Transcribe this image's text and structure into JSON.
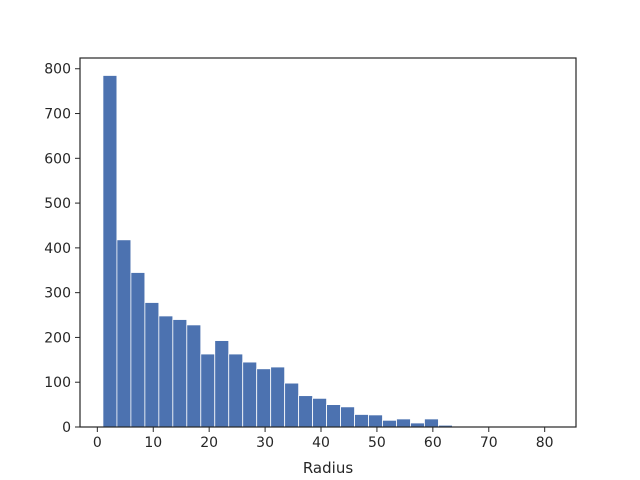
{
  "chart_data": {
    "type": "bar",
    "title": "",
    "xlabel": "Radius",
    "ylabel": "",
    "bin_width": 2.5,
    "bins": [
      {
        "x0": 1.0,
        "x1": 3.5,
        "value": 785
      },
      {
        "x0": 3.5,
        "x1": 6.0,
        "value": 418
      },
      {
        "x0": 6.0,
        "x1": 8.5,
        "value": 345
      },
      {
        "x0": 8.5,
        "x1": 11.0,
        "value": 278
      },
      {
        "x0": 11.0,
        "x1": 13.5,
        "value": 248
      },
      {
        "x0": 13.5,
        "x1": 16.0,
        "value": 240
      },
      {
        "x0": 16.0,
        "x1": 18.5,
        "value": 228
      },
      {
        "x0": 18.5,
        "x1": 21.0,
        "value": 163
      },
      {
        "x0": 21.0,
        "x1": 23.5,
        "value": 193
      },
      {
        "x0": 23.5,
        "x1": 26.0,
        "value": 163
      },
      {
        "x0": 26.0,
        "x1": 28.5,
        "value": 145
      },
      {
        "x0": 28.5,
        "x1": 31.0,
        "value": 130
      },
      {
        "x0": 31.0,
        "x1": 33.5,
        "value": 134
      },
      {
        "x0": 33.5,
        "x1": 36.0,
        "value": 98
      },
      {
        "x0": 36.0,
        "x1": 38.5,
        "value": 70
      },
      {
        "x0": 38.5,
        "x1": 41.0,
        "value": 64
      },
      {
        "x0": 41.0,
        "x1": 43.5,
        "value": 50
      },
      {
        "x0": 43.5,
        "x1": 46.0,
        "value": 45
      },
      {
        "x0": 46.0,
        "x1": 48.5,
        "value": 28
      },
      {
        "x0": 48.5,
        "x1": 51.0,
        "value": 27
      },
      {
        "x0": 51.0,
        "x1": 53.5,
        "value": 15
      },
      {
        "x0": 53.5,
        "x1": 56.0,
        "value": 18
      },
      {
        "x0": 56.0,
        "x1": 58.5,
        "value": 9
      },
      {
        "x0": 58.5,
        "x1": 61.0,
        "value": 18
      },
      {
        "x0": 61.0,
        "x1": 63.5,
        "value": 4
      },
      {
        "x0": 63.5,
        "x1": 66.0,
        "value": 1
      },
      {
        "x0": 66.0,
        "x1": 68.5,
        "value": 1
      },
      {
        "x0": 68.5,
        "x1": 71.0,
        "value": 1
      },
      {
        "x0": 71.0,
        "x1": 73.5,
        "value": 1
      },
      {
        "x0": 73.5,
        "x1": 76.0,
        "value": 0
      },
      {
        "x0": 76.0,
        "x1": 78.5,
        "value": 1
      },
      {
        "x0": 78.5,
        "x1": 81.0,
        "value": 0
      },
      {
        "x0": 81.0,
        "x1": 83.5,
        "value": 1
      }
    ],
    "xlim": [
      -3.1,
      85.6
    ],
    "ylim": [
      0,
      824
    ],
    "x_ticks": [
      0,
      10,
      20,
      30,
      40,
      50,
      60,
      70,
      80
    ],
    "y_ticks": [
      0,
      100,
      200,
      300,
      400,
      500,
      600,
      700,
      800
    ],
    "grid": false,
    "legend": "none",
    "bar_color": "#4c72b0"
  }
}
